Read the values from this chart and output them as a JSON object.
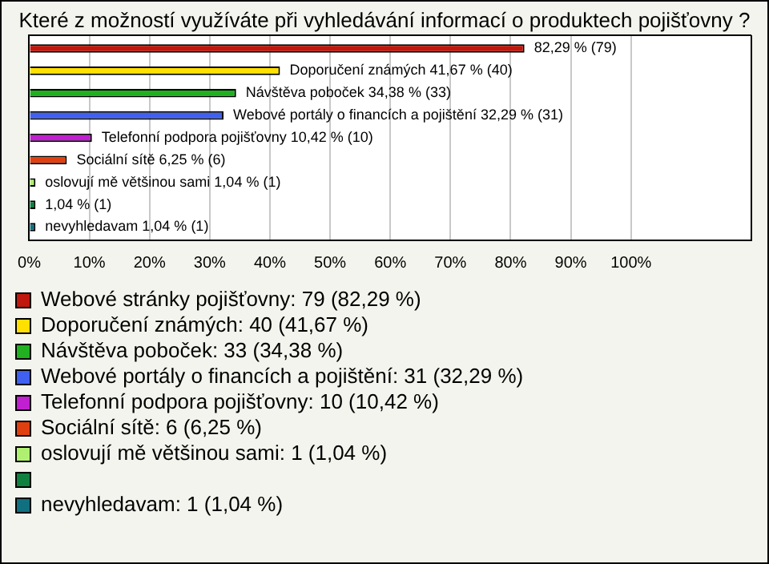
{
  "chart_data": {
    "type": "bar",
    "orientation": "horizontal",
    "title": "Které z možností využíváte při vyhledávání informací o produktech pojišťovny ?",
    "categories": [
      null
    ],
    "series": [
      {
        "name": "Webové stránky pojišťovny: 79 (82,29 %)",
        "color": "#c0180c",
        "values": [
          82.29
        ],
        "value_labels": [
          "82,29 % (79)"
        ]
      },
      {
        "name": "Doporučení známých: 40 (41,67 %)",
        "color": "#ffe000",
        "values": [
          41.67
        ],
        "value_labels": [
          "Doporučení známých 41,67 % (40)"
        ]
      },
      {
        "name": "Návštěva poboček: 33 (34,38 %)",
        "color": "#20b020",
        "values": [
          34.38
        ],
        "value_labels": [
          "Návštěva poboček 34,38 % (33)"
        ]
      },
      {
        "name": "Webové portály o financích a pojištění: 31 (32,29 %)",
        "color": "#4060f0",
        "values": [
          32.29
        ],
        "value_labels": [
          "Webové portály o financích a pojištění 32,29 % (31)"
        ]
      },
      {
        "name": "Telefonní podpora pojišťovny: 10 (10,42 %)",
        "color": "#c020d0",
        "values": [
          10.42
        ],
        "value_labels": [
          "Telefonní podpora pojišťovny 10,42 % (10)"
        ]
      },
      {
        "name": "Sociální sítě: 6 (6,25 %)",
        "color": "#e04010",
        "values": [
          6.25
        ],
        "value_labels": [
          "Sociální sítě 6,25 % (6)"
        ]
      },
      {
        "name": "oslovují mě většinou sami: 1 (1,04 %)",
        "color": "#b0f070",
        "values": [
          1.04
        ],
        "value_labels": [
          "oslovují mě většinou sami 1,04 % (1)"
        ]
      },
      {
        "color": "#108040",
        "values": [
          1.04
        ],
        "value_labels": [
          "1,04 % (1)"
        ]
      },
      {
        "name": "nevyhledavam: 1 (1,04 %)",
        "color": "#107080",
        "values": [
          1.04
        ],
        "value_labels": [
          "nevyhledavam 1,04 % (1)"
        ]
      }
    ],
    "xlim": [
      0,
      120
    ],
    "xticks": [
      {
        "value": 0,
        "label": "0%"
      },
      {
        "value": 10,
        "label": "10%"
      },
      {
        "value": 20,
        "label": "20%"
      },
      {
        "value": 30,
        "label": "30%"
      },
      {
        "value": 40,
        "label": "40%"
      },
      {
        "value": 50,
        "label": "50%"
      },
      {
        "value": 60,
        "label": "60%"
      },
      {
        "value": 70,
        "label": "70%"
      },
      {
        "value": 80,
        "label": "80%"
      },
      {
        "value": 90,
        "label": "90%"
      },
      {
        "value": 100,
        "label": "100%"
      },
      {
        "value": 120,
        "label": null
      }
    ],
    "tick_labels": "x",
    "grid": "x",
    "legend": "bottom"
  }
}
